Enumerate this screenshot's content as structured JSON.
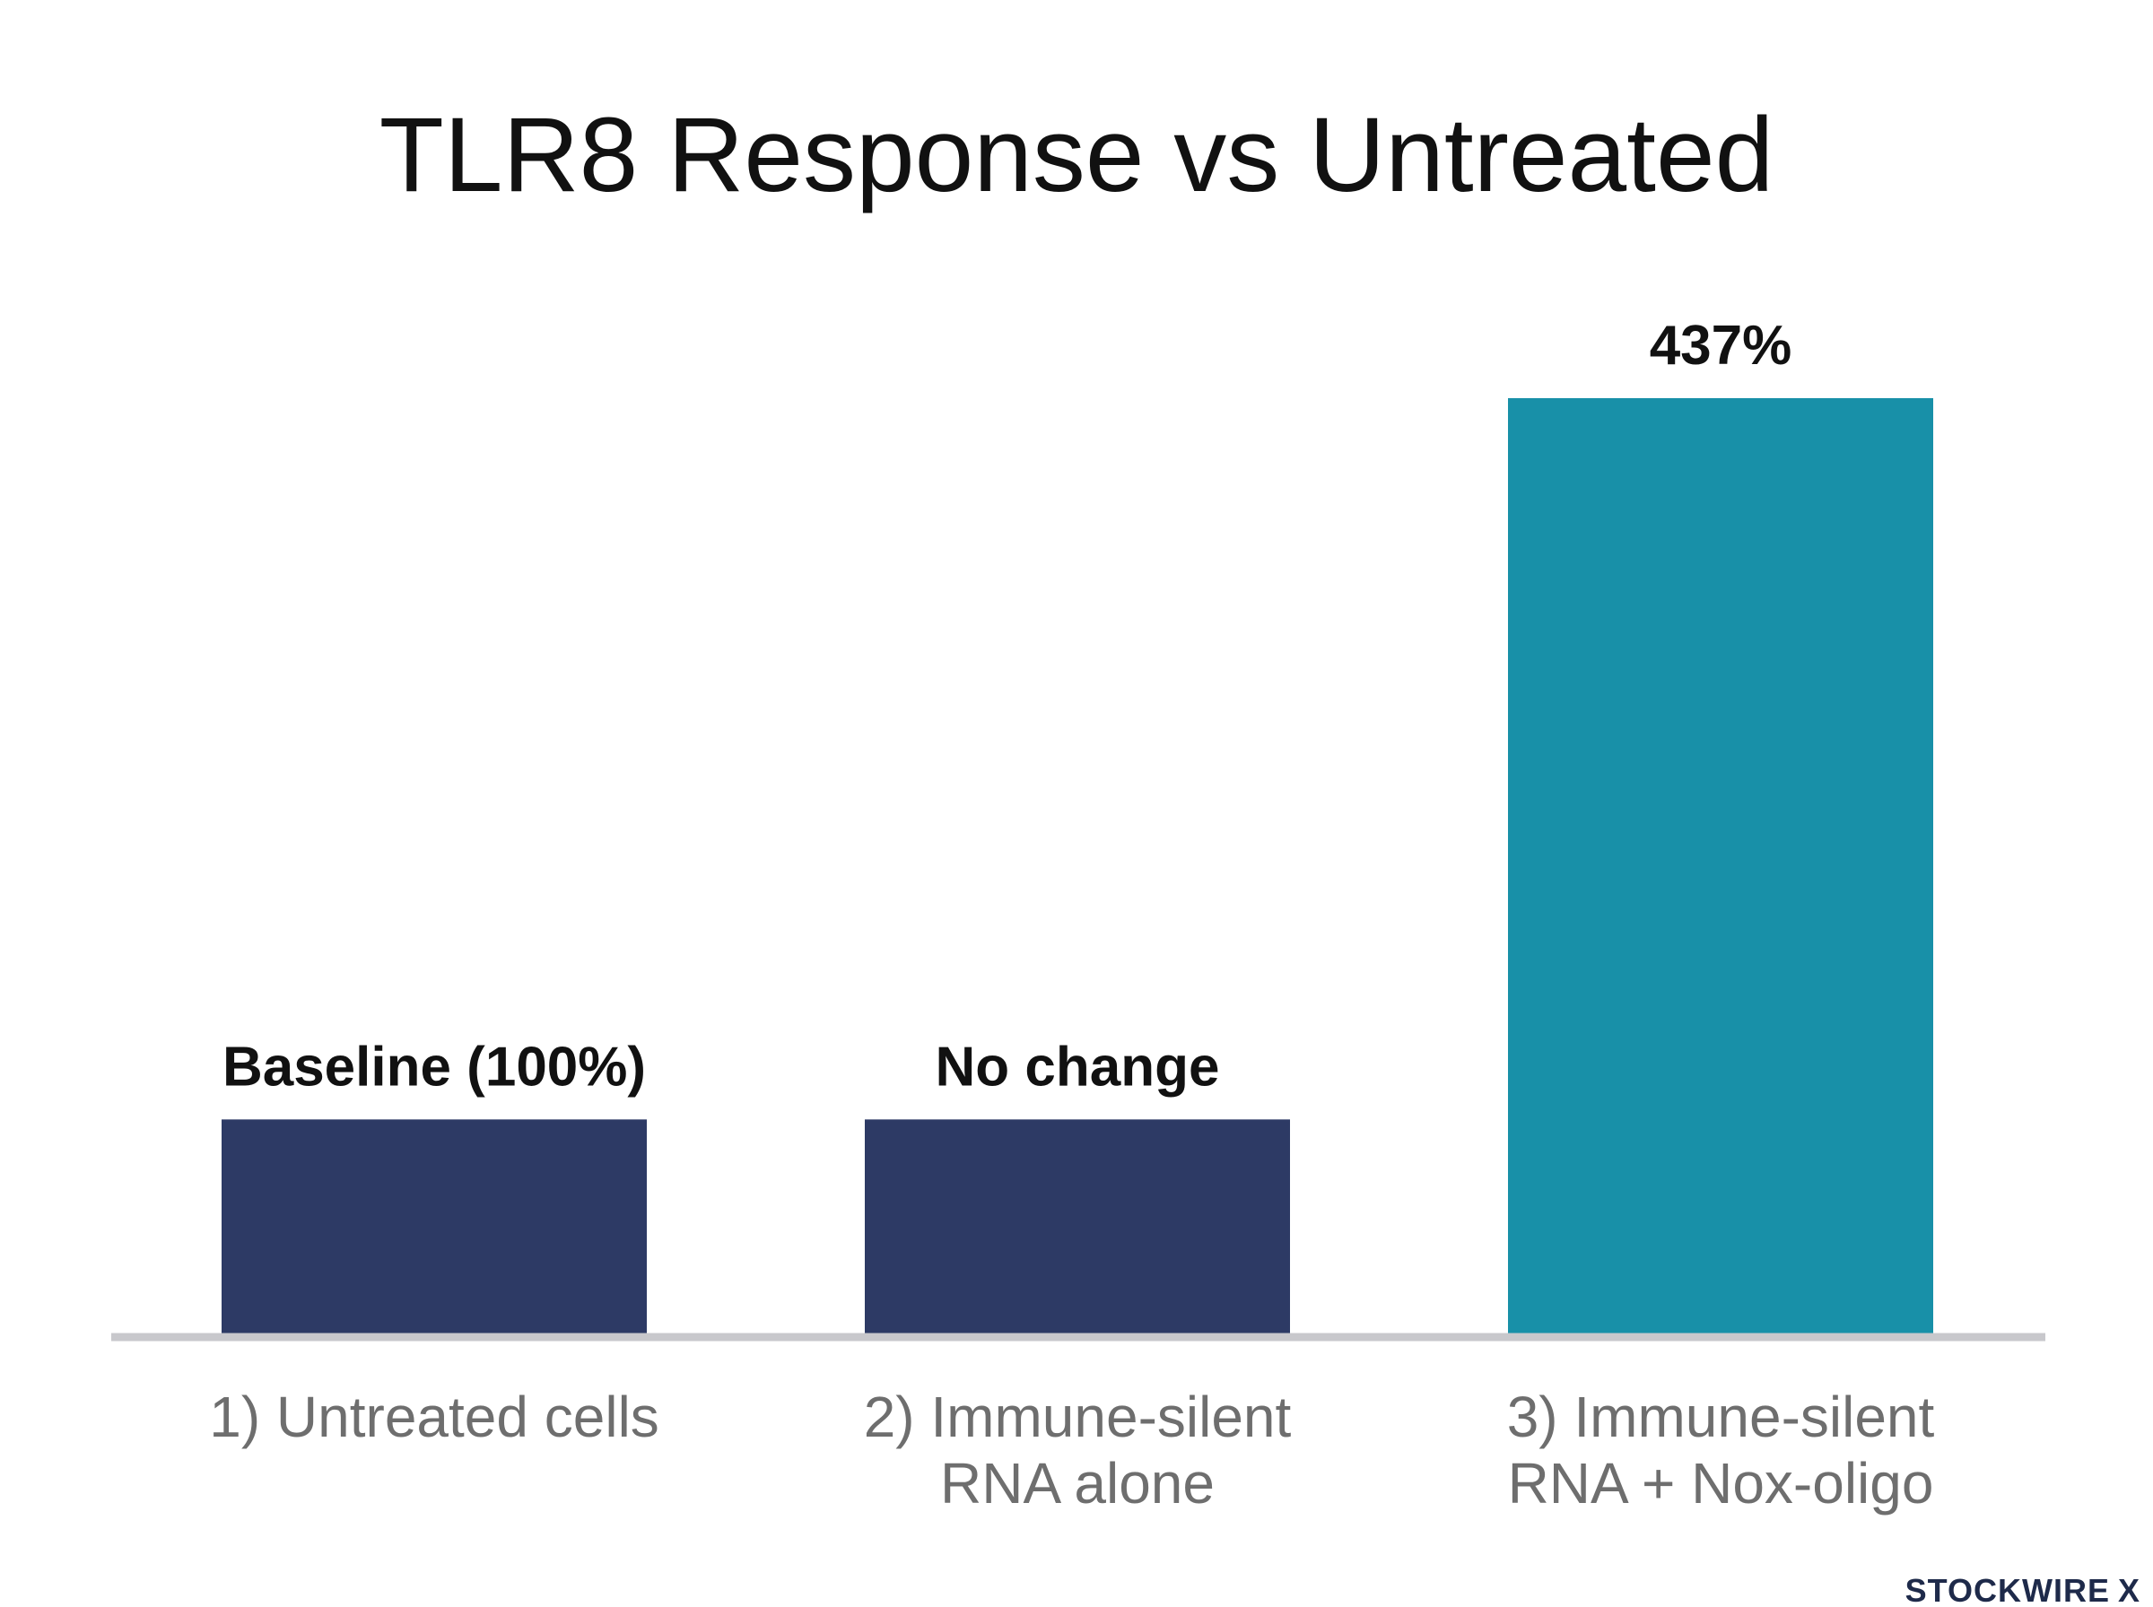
{
  "chart_data": {
    "type": "bar",
    "title": "TLR8 Response vs Untreated",
    "xlabel": "",
    "ylabel": "",
    "ylim": [
      0,
      460
    ],
    "grid": false,
    "legend": "none",
    "categories": [
      [
        "1) Untreated cells"
      ],
      [
        "2) Immune-silent",
        "RNA alone"
      ],
      [
        "3) Immune-silent",
        "RNA + Nox-oligo"
      ]
    ],
    "values": [
      100,
      100,
      437
    ],
    "data_labels": [
      "Baseline (100%)",
      "No change",
      "437%"
    ],
    "colors": [
      "#2d3a65",
      "#2d3a65",
      "#1890a8"
    ],
    "axis_color": "#c8c8cc"
  },
  "brand": {
    "name": "STOCKWIRE",
    "mark": "X"
  }
}
